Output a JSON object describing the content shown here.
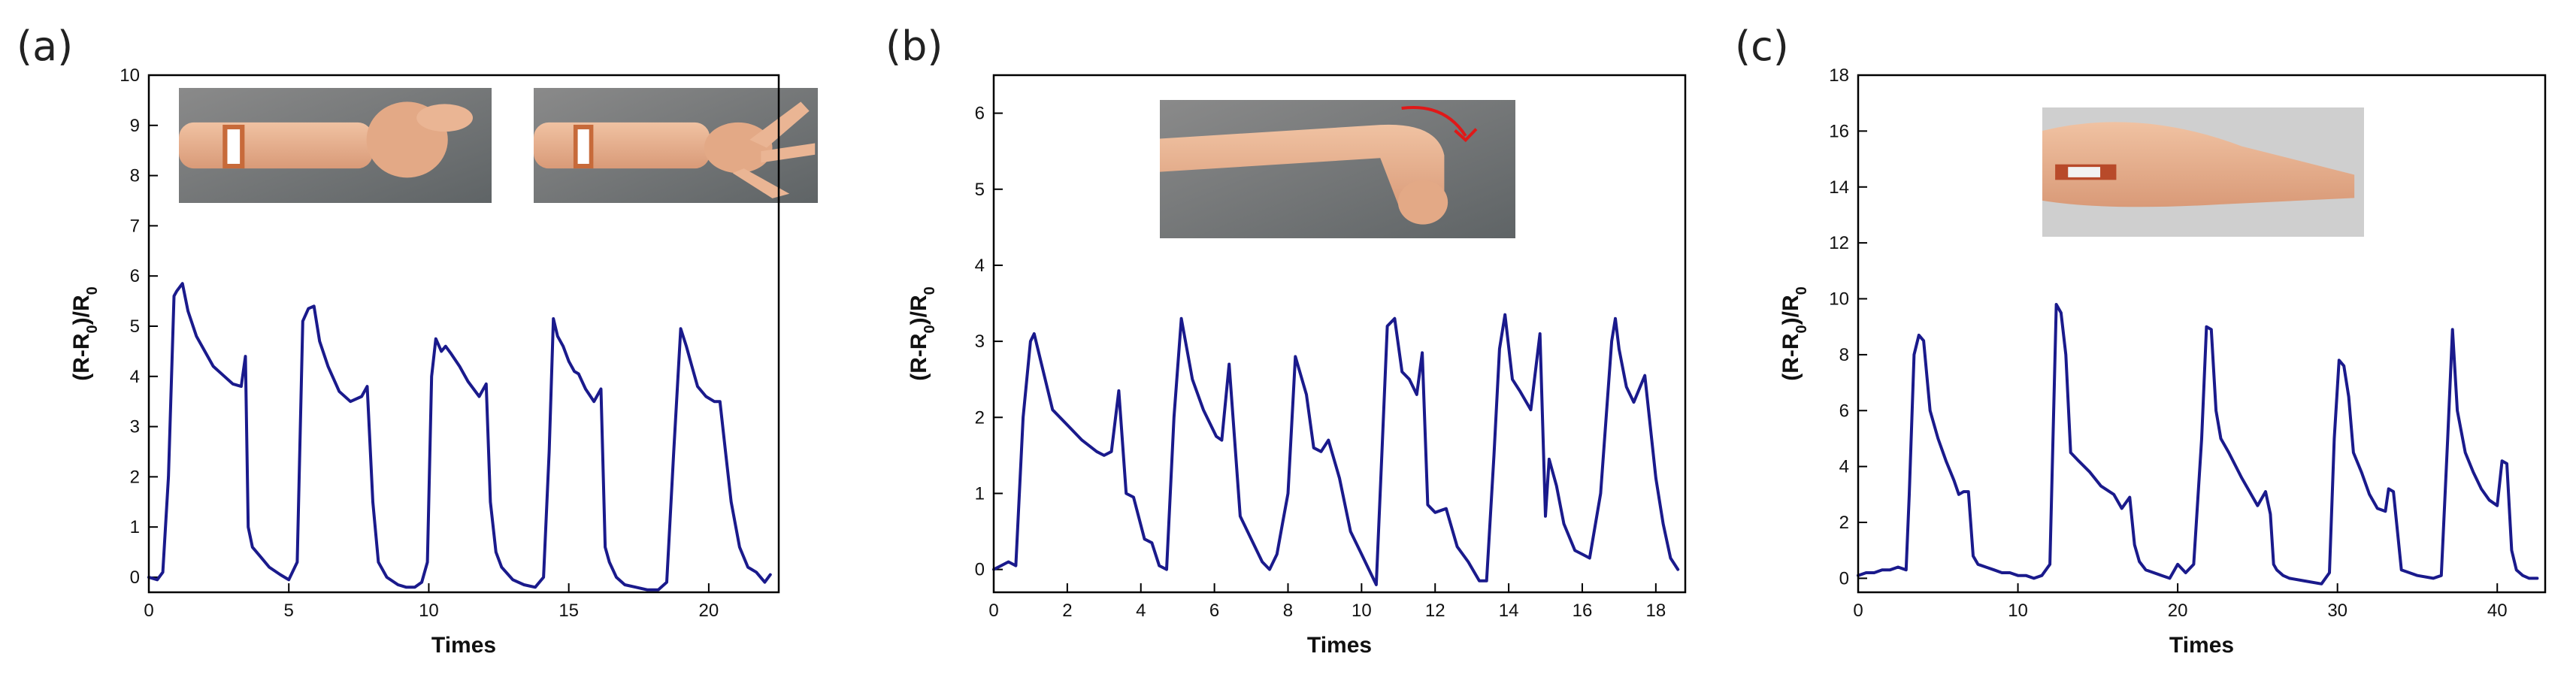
{
  "chart_data": [
    {
      "type": "line",
      "panel_label": "(a)",
      "xlabel": "Times",
      "ylabel_main": "(R-R",
      "ylabel_sub": "0",
      "ylabel_mid": ")/R",
      "ylabel_sub2": "0",
      "xlim": [
        0,
        22.5
      ],
      "ylim": [
        -0.3,
        10
      ],
      "xticks": [
        0,
        5,
        10,
        15,
        20
      ],
      "yticks": [
        0,
        1,
        2,
        3,
        4,
        5,
        6,
        7,
        8,
        9,
        10
      ],
      "insets": [
        "wrist-with-fist-photo",
        "wrist-with-open-hand-photo"
      ],
      "series": [
        {
          "color": "#1a1a8c",
          "x": [
            0,
            0.3,
            0.5,
            0.7,
            0.9,
            1.0,
            1.2,
            1.4,
            1.7,
            2.0,
            2.3,
            2.7,
            3.0,
            3.3,
            3.45,
            3.55,
            3.7,
            4.0,
            4.3,
            4.7,
            5.0,
            5.3,
            5.5,
            5.7,
            5.9,
            6.1,
            6.4,
            6.8,
            7.2,
            7.6,
            7.8,
            8.0,
            8.2,
            8.5,
            8.9,
            9.2,
            9.5,
            9.75,
            9.95,
            10.1,
            10.25,
            10.45,
            10.6,
            10.8,
            11.1,
            11.4,
            11.8,
            12.05,
            12.2,
            12.4,
            12.6,
            13.0,
            13.4,
            13.8,
            14.1,
            14.3,
            14.45,
            14.6,
            14.8,
            15.0,
            15.2,
            15.35,
            15.6,
            15.9,
            16.15,
            16.3,
            16.45,
            16.7,
            17.0,
            17.4,
            17.8,
            18.2,
            18.5,
            18.75,
            19.0,
            19.2,
            19.4,
            19.6,
            19.9,
            20.2,
            20.4,
            20.6,
            20.8,
            21.1,
            21.4,
            21.7,
            22.0,
            22.2
          ],
          "y": [
            0,
            -0.05,
            0.1,
            2.0,
            5.6,
            5.7,
            5.85,
            5.3,
            4.8,
            4.5,
            4.2,
            4.0,
            3.85,
            3.8,
            4.4,
            1.0,
            0.6,
            0.4,
            0.2,
            0.05,
            -0.05,
            0.3,
            5.1,
            5.35,
            5.4,
            4.7,
            4.2,
            3.7,
            3.5,
            3.6,
            3.8,
            1.5,
            0.3,
            0.0,
            -0.15,
            -0.2,
            -0.2,
            -0.1,
            0.3,
            4.0,
            4.75,
            4.5,
            4.6,
            4.45,
            4.2,
            3.9,
            3.6,
            3.85,
            1.5,
            0.5,
            0.2,
            -0.05,
            -0.15,
            -0.2,
            0.0,
            2.5,
            5.15,
            4.8,
            4.6,
            4.3,
            4.1,
            4.05,
            3.75,
            3.5,
            3.75,
            0.6,
            0.3,
            0.0,
            -0.15,
            -0.2,
            -0.25,
            -0.25,
            -0.1,
            2.5,
            4.95,
            4.6,
            4.2,
            3.8,
            3.6,
            3.5,
            3.5,
            2.5,
            1.5,
            0.6,
            0.2,
            0.1,
            -0.1,
            0.05
          ]
        }
      ]
    },
    {
      "type": "line",
      "panel_label": "(b)",
      "xlabel": "Times",
      "ylabel_main": "(R-R",
      "ylabel_sub": "0",
      "ylabel_mid": ")/R",
      "ylabel_sub2": "0",
      "xlim": [
        0,
        18.8
      ],
      "ylim": [
        -0.3,
        6.5
      ],
      "xticks": [
        0,
        2,
        4,
        6,
        8,
        10,
        12,
        14,
        16,
        18
      ],
      "yticks": [
        0,
        1,
        2,
        3,
        4,
        5,
        6
      ],
      "insets": [
        "bent-wrist-photo"
      ],
      "series": [
        {
          "color": "#1a1a8c",
          "x": [
            0,
            0.2,
            0.4,
            0.6,
            0.8,
            1.0,
            1.1,
            1.3,
            1.6,
            2.0,
            2.4,
            2.8,
            3.0,
            3.2,
            3.4,
            3.6,
            3.8,
            4.1,
            4.3,
            4.5,
            4.7,
            4.9,
            5.1,
            5.4,
            5.7,
            5.9,
            6.05,
            6.2,
            6.4,
            6.7,
            7.0,
            7.3,
            7.5,
            7.7,
            7.85,
            8.0,
            8.2,
            8.5,
            8.7,
            8.9,
            9.1,
            9.4,
            9.7,
            10.0,
            10.2,
            10.4,
            10.55,
            10.7,
            10.9,
            11.1,
            11.3,
            11.5,
            11.65,
            11.8,
            12.0,
            12.3,
            12.6,
            12.9,
            13.2,
            13.4,
            13.6,
            13.75,
            13.9,
            14.1,
            14.3,
            14.6,
            14.85,
            15.0,
            15.1,
            15.3,
            15.5,
            15.8,
            16.0,
            16.2,
            16.5,
            16.8,
            16.9,
            17.0,
            17.2,
            17.4,
            17.7,
            18.0,
            18.2,
            18.4,
            18.6
          ],
          "y": [
            0,
            0.05,
            0.1,
            0.05,
            2.0,
            3.0,
            3.1,
            2.7,
            2.1,
            1.9,
            1.7,
            1.55,
            1.5,
            1.55,
            2.35,
            1.0,
            0.95,
            0.4,
            0.35,
            0.05,
            0.0,
            2.0,
            3.3,
            2.5,
            2.1,
            1.9,
            1.75,
            1.7,
            2.7,
            0.7,
            0.4,
            0.1,
            0.0,
            0.2,
            0.6,
            1.0,
            2.8,
            2.3,
            1.6,
            1.55,
            1.7,
            1.2,
            0.5,
            0.2,
            0.0,
            -0.2,
            1.5,
            3.2,
            3.3,
            2.6,
            2.5,
            2.3,
            2.85,
            0.85,
            0.75,
            0.8,
            0.3,
            0.1,
            -0.15,
            -0.15,
            1.5,
            2.9,
            3.35,
            2.5,
            2.35,
            2.1,
            3.1,
            0.7,
            1.45,
            1.1,
            0.6,
            0.25,
            0.2,
            0.15,
            1.0,
            3.0,
            3.3,
            2.9,
            2.4,
            2.2,
            2.55,
            1.2,
            0.6,
            0.15,
            0.0
          ]
        }
      ]
    },
    {
      "type": "line",
      "panel_label": "(c)",
      "xlabel": "Times",
      "ylabel_main": "(R-R",
      "ylabel_sub": "0",
      "ylabel_mid": ")/R",
      "ylabel_sub2": "0",
      "xlim": [
        0,
        43
      ],
      "ylim": [
        -0.5,
        18
      ],
      "xticks": [
        0,
        10,
        20,
        30,
        40
      ],
      "yticks": [
        0,
        2,
        4,
        6,
        8,
        10,
        12,
        14,
        16,
        18
      ],
      "insets": [
        "arm-with-sensor-photo"
      ],
      "series": [
        {
          "color": "#1a1a8c",
          "x": [
            0,
            0.5,
            1.0,
            1.5,
            2.0,
            2.5,
            3.0,
            3.2,
            3.5,
            3.8,
            4.1,
            4.5,
            5.0,
            5.5,
            6.0,
            6.3,
            6.6,
            6.9,
            7.2,
            7.5,
            8.0,
            8.5,
            9.0,
            9.5,
            10.0,
            10.5,
            11.0,
            11.5,
            12.0,
            12.4,
            12.7,
            13.0,
            13.3,
            13.8,
            14.5,
            15.2,
            16.0,
            16.5,
            17.0,
            17.3,
            17.6,
            18.0,
            19.0,
            19.5,
            20.0,
            20.5,
            21.0,
            21.5,
            21.8,
            22.1,
            22.4,
            22.7,
            23.2,
            24.0,
            25.0,
            25.5,
            25.8,
            26.0,
            26.2,
            26.6,
            27.0,
            28.0,
            29.0,
            29.5,
            29.8,
            30.1,
            30.4,
            30.7,
            31.0,
            31.5,
            32.0,
            32.5,
            33.0,
            33.2,
            33.5,
            34.0,
            35.0,
            36.0,
            36.5,
            36.9,
            37.2,
            37.5,
            38.0,
            38.5,
            39.0,
            39.5,
            40.0,
            40.3,
            40.6,
            40.9,
            41.2,
            41.6,
            42.0,
            42.5
          ],
          "y": [
            0.1,
            0.2,
            0.2,
            0.3,
            0.3,
            0.4,
            0.3,
            3.0,
            8.0,
            8.7,
            8.5,
            6.0,
            5.0,
            4.2,
            3.5,
            3.0,
            3.1,
            3.1,
            0.8,
            0.5,
            0.4,
            0.3,
            0.2,
            0.2,
            0.1,
            0.1,
            0.0,
            0.1,
            0.5,
            9.8,
            9.5,
            8.0,
            4.5,
            4.2,
            3.8,
            3.3,
            3.0,
            2.5,
            2.9,
            1.2,
            0.6,
            0.3,
            0.1,
            0.0,
            0.5,
            0.2,
            0.5,
            5.0,
            9.0,
            8.9,
            6.0,
            5.0,
            4.5,
            3.6,
            2.6,
            3.1,
            2.3,
            0.5,
            0.3,
            0.1,
            0.0,
            -0.1,
            -0.2,
            0.2,
            5.0,
            7.8,
            7.6,
            6.5,
            4.5,
            3.8,
            3.0,
            2.5,
            2.4,
            3.2,
            3.1,
            0.3,
            0.1,
            0.0,
            0.1,
            5.0,
            8.9,
            6.0,
            4.5,
            3.8,
            3.2,
            2.8,
            2.6,
            4.2,
            4.1,
            1.0,
            0.3,
            0.1,
            0.0,
            0.0
          ]
        }
      ]
    }
  ]
}
